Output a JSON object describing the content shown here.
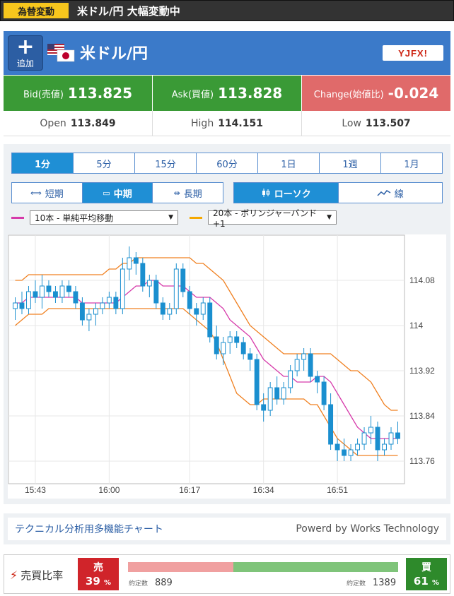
{
  "alert": {
    "badge": "為替変動",
    "text": "米ドル/円 大幅変動中"
  },
  "header": {
    "add_label": "追加",
    "add_plus": "+",
    "pair": "米ドル/円",
    "logo_text": "YJFX!"
  },
  "quotes": {
    "bid_label": "Bid(売値)",
    "bid_value": "113.825",
    "ask_label": "Ask(買値)",
    "ask_value": "113.828",
    "change_label": "Change(始値比)",
    "change_value": "-0.024"
  },
  "ohl": {
    "open_label": "Open",
    "open_value": "113.849",
    "high_label": "High",
    "high_value": "114.151",
    "low_label": "Low",
    "low_value": "113.507"
  },
  "timeframes": [
    "1分",
    "5分",
    "15分",
    "60分",
    "1日",
    "1週",
    "1月"
  ],
  "timeframe_active": 0,
  "range": {
    "short": "短期",
    "mid": "中期",
    "long": "長期"
  },
  "style": {
    "candle": "ローソク",
    "line": "線"
  },
  "indicators": {
    "ind1": "10本 - 単純平均移動",
    "ind1_color": "#d63aaa",
    "ind2": "20本 - ボリンジャーバンド+1",
    "ind2_color": "#f5a800"
  },
  "credit": {
    "left": "テクニカル分析用多機能チャート",
    "right": "Powerd by Works Technology"
  },
  "ratio": {
    "label": "売買比率",
    "sell_title": "売",
    "sell_pct": "39",
    "pct_unit": "%",
    "buy_title": "買",
    "buy_pct": "61",
    "sell_count_label": "約定数",
    "sell_count": "889",
    "buy_count_label": "約定数",
    "buy_count": "1389"
  },
  "chart_data": {
    "type": "candlestick",
    "ylim": [
      113.72,
      114.16
    ],
    "y_ticks": [
      "114.08",
      "114",
      "113.92",
      "113.84",
      "113.76"
    ],
    "x_ticks": [
      "15:43",
      "16:00",
      "16:17",
      "16:34",
      "16:51"
    ],
    "colors": {
      "candle": "#1a8fcf",
      "sma": "#d63aaa",
      "band": "#f08020",
      "grid": "#e7e7e7"
    },
    "candles": [
      [
        114.03,
        114.05,
        114.01,
        114.04
      ],
      [
        114.04,
        114.06,
        114.02,
        114.03
      ],
      [
        114.03,
        114.07,
        114.02,
        114.06
      ],
      [
        114.06,
        114.08,
        114.04,
        114.05
      ],
      [
        114.05,
        114.09,
        114.03,
        114.07
      ],
      [
        114.07,
        114.08,
        114.05,
        114.06
      ],
      [
        114.06,
        114.07,
        114.04,
        114.05
      ],
      [
        114.05,
        114.08,
        114.04,
        114.07
      ],
      [
        114.07,
        114.08,
        114.05,
        114.06
      ],
      [
        114.06,
        114.07,
        114.03,
        114.04
      ],
      [
        114.04,
        114.05,
        114.0,
        114.01
      ],
      [
        114.01,
        114.03,
        113.99,
        114.02
      ],
      [
        114.02,
        114.04,
        114.0,
        114.03
      ],
      [
        114.03,
        114.05,
        114.02,
        114.04
      ],
      [
        114.04,
        114.06,
        114.03,
        114.05
      ],
      [
        114.05,
        114.06,
        114.02,
        114.03
      ],
      [
        114.03,
        114.12,
        114.02,
        114.1
      ],
      [
        114.1,
        114.14,
        114.08,
        114.12
      ],
      [
        114.12,
        114.13,
        114.09,
        114.11
      ],
      [
        114.11,
        114.12,
        114.06,
        114.07
      ],
      [
        114.07,
        114.09,
        114.05,
        114.08
      ],
      [
        114.08,
        114.09,
        114.03,
        114.04
      ],
      [
        114.04,
        114.05,
        114.01,
        114.02
      ],
      [
        114.02,
        114.04,
        114.01,
        114.03
      ],
      [
        114.03,
        114.11,
        114.02,
        114.1
      ],
      [
        114.1,
        114.11,
        114.05,
        114.06
      ],
      [
        114.06,
        114.07,
        114.02,
        114.03
      ],
      [
        114.03,
        114.04,
        114.0,
        114.02
      ],
      [
        114.02,
        114.05,
        114.01,
        114.04
      ],
      [
        114.04,
        114.05,
        113.97,
        113.98
      ],
      [
        113.98,
        114.0,
        113.94,
        113.95
      ],
      [
        113.95,
        113.98,
        113.93,
        113.97
      ],
      [
        113.97,
        113.99,
        113.95,
        113.98
      ],
      [
        113.98,
        113.99,
        113.96,
        113.97
      ],
      [
        113.97,
        113.98,
        113.94,
        113.95
      ],
      [
        113.95,
        113.96,
        113.92,
        113.94
      ],
      [
        113.94,
        113.95,
        113.85,
        113.86
      ],
      [
        113.86,
        113.88,
        113.83,
        113.85
      ],
      [
        113.85,
        113.9,
        113.84,
        113.89
      ],
      [
        113.89,
        113.91,
        113.86,
        113.87
      ],
      [
        113.87,
        113.9,
        113.86,
        113.89
      ],
      [
        113.89,
        113.93,
        113.88,
        113.92
      ],
      [
        113.92,
        113.95,
        113.91,
        113.94
      ],
      [
        113.94,
        113.96,
        113.92,
        113.95
      ],
      [
        113.95,
        113.96,
        113.9,
        113.91
      ],
      [
        113.91,
        113.92,
        113.88,
        113.9
      ],
      [
        113.9,
        113.91,
        113.85,
        113.86
      ],
      [
        113.86,
        113.88,
        113.78,
        113.79
      ],
      [
        113.79,
        113.8,
        113.76,
        113.78
      ],
      [
        113.78,
        113.8,
        113.76,
        113.77
      ],
      [
        113.77,
        113.79,
        113.76,
        113.78
      ],
      [
        113.78,
        113.8,
        113.77,
        113.79
      ],
      [
        113.79,
        113.82,
        113.78,
        113.81
      ],
      [
        113.81,
        113.84,
        113.79,
        113.82
      ],
      [
        113.82,
        113.83,
        113.76,
        113.78
      ],
      [
        113.78,
        113.8,
        113.77,
        113.79
      ],
      [
        113.79,
        113.82,
        113.78,
        113.81
      ],
      [
        113.81,
        113.83,
        113.79,
        113.8
      ]
    ],
    "sma": [
      114.04,
      114.04,
      114.05,
      114.05,
      114.05,
      114.05,
      114.05,
      114.05,
      114.05,
      114.05,
      114.04,
      114.04,
      114.04,
      114.04,
      114.04,
      114.04,
      114.05,
      114.06,
      114.07,
      114.07,
      114.08,
      114.08,
      114.07,
      114.07,
      114.07,
      114.07,
      114.06,
      114.05,
      114.05,
      114.05,
      114.04,
      114.03,
      114.01,
      114.0,
      113.99,
      113.98,
      113.96,
      113.94,
      113.93,
      113.92,
      113.91,
      113.91,
      113.9,
      113.9,
      113.9,
      113.91,
      113.91,
      113.9,
      113.88,
      113.86,
      113.84,
      113.82,
      113.81,
      113.8,
      113.8,
      113.8,
      113.8,
      113.8
    ],
    "band_upper": [
      114.08,
      114.08,
      114.09,
      114.09,
      114.09,
      114.09,
      114.09,
      114.09,
      114.09,
      114.09,
      114.09,
      114.09,
      114.09,
      114.09,
      114.1,
      114.1,
      114.11,
      114.11,
      114.12,
      114.12,
      114.12,
      114.12,
      114.12,
      114.12,
      114.12,
      114.12,
      114.12,
      114.11,
      114.11,
      114.1,
      114.09,
      114.08,
      114.06,
      114.04,
      114.02,
      114.0,
      113.99,
      113.98,
      113.97,
      113.96,
      113.95,
      113.95,
      113.95,
      113.95,
      113.95,
      113.95,
      113.95,
      113.95,
      113.94,
      113.93,
      113.92,
      113.92,
      113.91,
      113.9,
      113.88,
      113.86,
      113.85,
      113.85
    ],
    "band_lower": [
      114.0,
      114.01,
      114.02,
      114.02,
      114.02,
      114.03,
      114.03,
      114.03,
      114.03,
      114.03,
      114.03,
      114.03,
      114.03,
      114.03,
      114.03,
      114.03,
      114.03,
      114.03,
      114.03,
      114.03,
      114.03,
      114.03,
      114.03,
      114.03,
      114.03,
      114.03,
      114.02,
      114.01,
      114.0,
      113.99,
      113.97,
      113.94,
      113.91,
      113.88,
      113.87,
      113.86,
      113.86,
      113.87,
      113.87,
      113.87,
      113.87,
      113.87,
      113.87,
      113.87,
      113.86,
      113.86,
      113.84,
      113.82,
      113.8,
      113.79,
      113.78,
      113.77,
      113.77,
      113.77,
      113.77,
      113.77,
      113.77,
      113.77
    ]
  }
}
